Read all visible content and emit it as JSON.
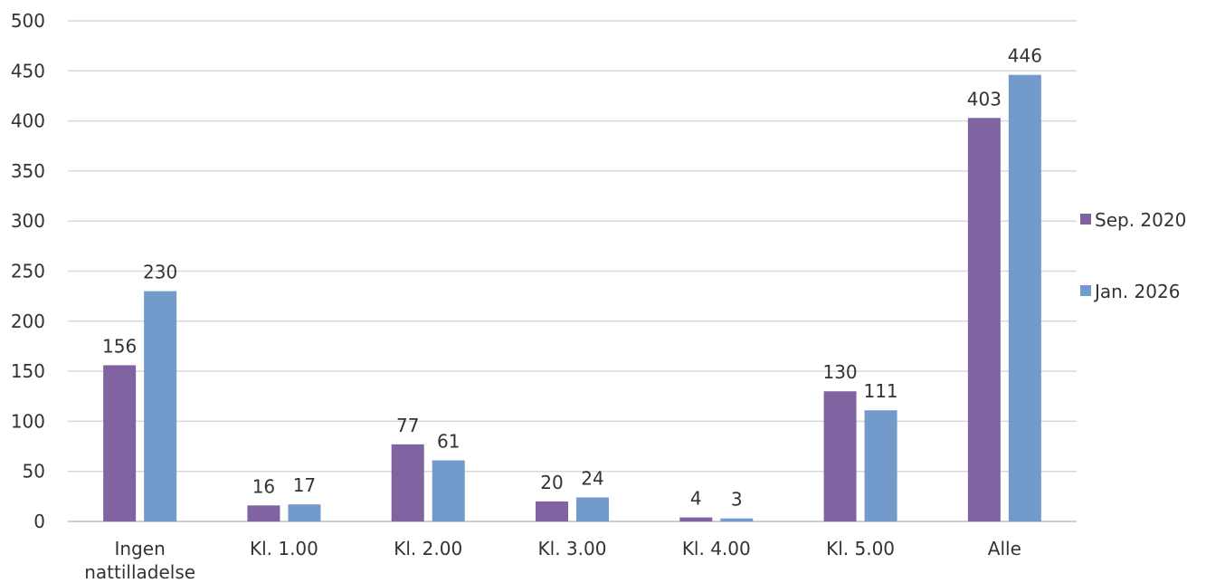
{
  "chart_data": {
    "type": "bar",
    "categories": [
      [
        "Ingen",
        "nattilladelse"
      ],
      [
        "Kl. 1.00"
      ],
      [
        "Kl. 2.00"
      ],
      [
        "Kl. 3.00"
      ],
      [
        "Kl. 4.00"
      ],
      [
        "Kl. 5.00"
      ],
      [
        "Alle"
      ]
    ],
    "series": [
      {
        "name": "Sep. 2020",
        "color": "#8064a2",
        "values": [
          156,
          16,
          77,
          20,
          4,
          130,
          403
        ]
      },
      {
        "name": "Jan. 2026",
        "color": "#729aca",
        "values": [
          230,
          17,
          61,
          24,
          3,
          111,
          446
        ]
      }
    ],
    "yticks": [
      0,
      50,
      100,
      150,
      200,
      250,
      300,
      350,
      400,
      450,
      500
    ],
    "ylim": [
      0,
      500
    ],
    "grid": true,
    "legend": "right",
    "data_labels": true
  }
}
